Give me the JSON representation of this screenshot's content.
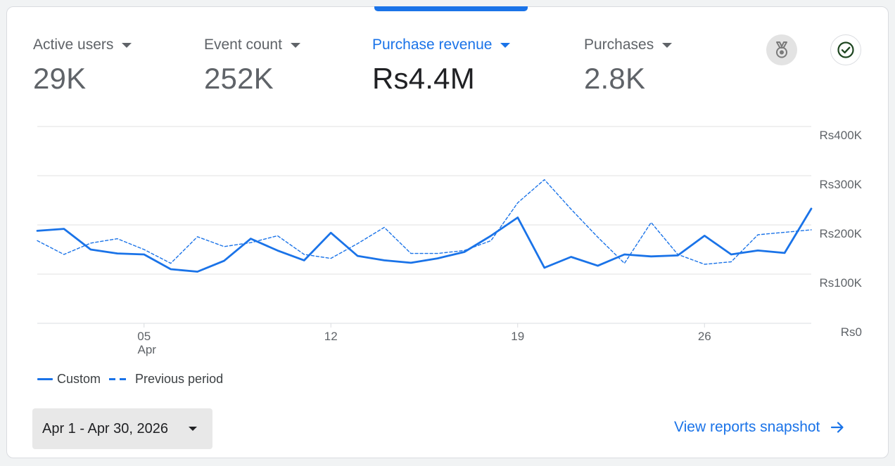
{
  "metrics": [
    {
      "label": "Active users",
      "value": "29K",
      "selected": false
    },
    {
      "label": "Event count",
      "value": "252K",
      "selected": false
    },
    {
      "label": "Purchase revenue",
      "value": "Rs4.4M",
      "selected": true
    },
    {
      "label": "Purchases",
      "value": "2.8K",
      "selected": false
    }
  ],
  "icons": {
    "insights": "insights-medal-icon",
    "check": "check-circle-icon"
  },
  "colors": {
    "accent": "#1a73e8",
    "muted_text": "#5f6368",
    "strong_text": "#202124",
    "gridline": "#e0e0e0"
  },
  "legend": {
    "custom": "Custom",
    "previous": "Previous period"
  },
  "date_range": {
    "label": "Apr 1 - Apr 30, 2026"
  },
  "snapshot_link": {
    "label": "View reports snapshot"
  },
  "chart_data": {
    "type": "line",
    "x": [
      1,
      2,
      3,
      4,
      5,
      6,
      7,
      8,
      9,
      10,
      11,
      12,
      13,
      14,
      15,
      16,
      17,
      18,
      19,
      20,
      21,
      22,
      23,
      24,
      25,
      26,
      27,
      28,
      29,
      30
    ],
    "x_tick_labels": [
      {
        "x": 5,
        "label": "05",
        "sublabel": "Apr"
      },
      {
        "x": 12,
        "label": "12"
      },
      {
        "x": 19,
        "label": "19"
      },
      {
        "x": 26,
        "label": "26"
      }
    ],
    "y_tick_labels": [
      "Rs0",
      "Rs100K",
      "Rs200K",
      "Rs300K",
      "Rs400K"
    ],
    "y_ticks": [
      0,
      100000,
      200000,
      300000,
      400000
    ],
    "ylim": [
      0,
      400000
    ],
    "xlim": [
      1,
      30
    ],
    "grid": true,
    "series": [
      {
        "name": "Custom",
        "style": "solid",
        "values": [
          188000,
          192000,
          150000,
          142000,
          140000,
          110000,
          105000,
          127000,
          172000,
          148000,
          128000,
          184000,
          137000,
          128000,
          123000,
          132000,
          145000,
          178000,
          215000,
          113000,
          135000,
          117000,
          140000,
          136000,
          138000,
          178000,
          140000,
          148000,
          143000,
          233000
        ]
      },
      {
        "name": "Previous period",
        "style": "dashed",
        "values": [
          168000,
          140000,
          163000,
          172000,
          150000,
          122000,
          176000,
          156000,
          164000,
          178000,
          140000,
          132000,
          162000,
          195000,
          142000,
          142000,
          148000,
          168000,
          245000,
          292000,
          232000,
          175000,
          122000,
          205000,
          140000,
          120000,
          125000,
          180000,
          185000,
          190000
        ]
      }
    ]
  }
}
